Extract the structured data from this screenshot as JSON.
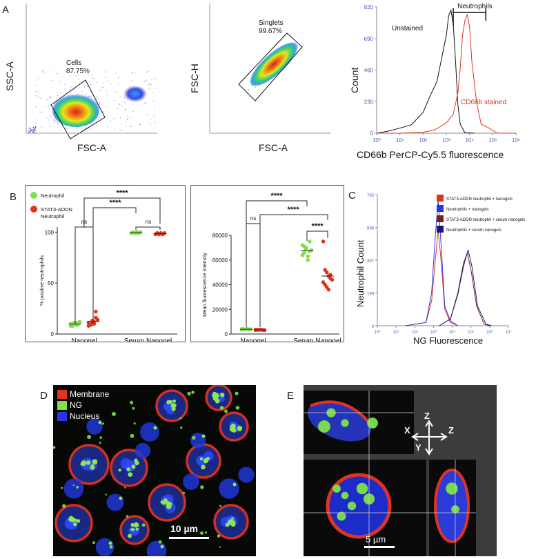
{
  "panels": {
    "A": "A",
    "B": "B",
    "C": "C",
    "D": "D",
    "E": "E"
  },
  "flow": {
    "p1": {
      "ylabel": "SSC-A",
      "xlabel": "FSC-A",
      "gate_name": "Cells",
      "gate_pct": "87.75%"
    },
    "p2": {
      "ylabel": "FSC-H",
      "xlabel": "FSC-A",
      "gate_name": "Singlets",
      "gate_pct": "99.67%"
    }
  },
  "colors": {
    "green": "#7ee04a",
    "red": "#e2331f",
    "blue": "#2a33e8",
    "darkred": "#7a1e1e",
    "navy": "#151a7a",
    "blueaxis": "#4a5cb0"
  },
  "chart_data": [
    {
      "id": "histogram_cd66b",
      "type": "line",
      "title": "",
      "xlabel": "CD66b PerCP-Cy5.5 fluorescence",
      "ylabel": "Count",
      "x_scale": "log",
      "x_ticks": [
        "10⁰",
        "10¹",
        "10²",
        "10³",
        "10⁴",
        "10⁵",
        "10⁶"
      ],
      "y_ticks": [
        "0",
        "230",
        "460",
        "690",
        "920"
      ],
      "ylim": [
        0,
        920
      ],
      "xlim_log10": [
        0,
        6
      ],
      "series": [
        {
          "name": "Unstained",
          "points": [
            [
              0.0,
              0
            ],
            [
              0.5,
              8
            ],
            [
              1.0,
              20
            ],
            [
              1.5,
              60
            ],
            [
              2.0,
              150
            ],
            [
              2.3,
              250
            ],
            [
              2.6,
              400
            ],
            [
              2.8,
              560
            ],
            [
              3.0,
              720
            ],
            [
              3.1,
              840
            ],
            [
              3.2,
              900
            ],
            [
              3.3,
              780
            ],
            [
              3.4,
              520
            ],
            [
              3.5,
              200
            ],
            [
              3.6,
              60
            ],
            [
              3.8,
              10
            ],
            [
              4.2,
              0
            ]
          ]
        },
        {
          "name": "CD66b stained",
          "points": [
            [
              0.0,
              0
            ],
            [
              1.0,
              10
            ],
            [
              2.0,
              20
            ],
            [
              2.5,
              30
            ],
            [
              3.0,
              60
            ],
            [
              3.3,
              120
            ],
            [
              3.5,
              300
            ],
            [
              3.6,
              480
            ],
            [
              3.7,
              700
            ],
            [
              3.8,
              830
            ],
            [
              3.9,
              850
            ],
            [
              4.0,
              760
            ],
            [
              4.1,
              520
            ],
            [
              4.3,
              230
            ],
            [
              4.5,
              80
            ],
            [
              4.8,
              20
            ],
            [
              5.2,
              5
            ],
            [
              6.0,
              0
            ]
          ]
        }
      ],
      "annotations": {
        "gate_label": "Neutrophils",
        "unstained_label": "Unstained",
        "stained_label": "CD66b stained",
        "gate_log10": [
          3.3,
          4.7
        ]
      }
    },
    {
      "id": "pct_positive",
      "type": "scatter",
      "ylabel": "% positive neutrophils",
      "categories": [
        "Nanogel",
        "Serum Nanogel"
      ],
      "ylim": [
        0,
        105
      ],
      "y_ticks": [
        "0",
        "50",
        "100"
      ],
      "legend": [
        "Neutrophil",
        "STAT3-ADDN Neutrophil"
      ],
      "series": [
        {
          "name": "Neutrophil",
          "category": "Nanogel",
          "values": [
            8,
            9,
            10,
            11,
            9,
            12,
            10,
            8,
            11,
            9,
            10
          ]
        },
        {
          "name": "STAT3-ADDN Neutrophil",
          "category": "Nanogel",
          "values": [
            8,
            9,
            10,
            12,
            22,
            14,
            11,
            9,
            13,
            10,
            16
          ]
        },
        {
          "name": "Neutrophil",
          "category": "Serum Nanogel",
          "values": [
            99,
            100,
            99,
            100,
            99,
            100,
            99,
            100,
            99,
            100,
            99
          ]
        },
        {
          "name": "STAT3-ADDN Neutrophil",
          "category": "Serum Nanogel",
          "values": [
            98,
            99,
            98,
            99,
            98,
            99,
            98,
            99,
            98,
            99,
            98
          ]
        }
      ],
      "significance": [
        {
          "label": "ns",
          "pair": "Nanogel"
        },
        {
          "label": "ns",
          "pair": "Serum Nanogel"
        },
        {
          "label": "****"
        },
        {
          "label": "****"
        }
      ]
    },
    {
      "id": "mfi",
      "type": "scatter",
      "ylabel": "Mean fluorescence intensity",
      "categories": [
        "Nanogel",
        "Serum Nanogel"
      ],
      "ylim": [
        0,
        80000
      ],
      "y_ticks": [
        "0",
        "20000",
        "40000",
        "60000",
        "80000"
      ],
      "series": [
        {
          "name": "Neutrophil",
          "category": "Nanogel",
          "values": [
            3500,
            4000,
            3800,
            4200,
            3600,
            3900,
            4100,
            3700
          ]
        },
        {
          "name": "STAT3-ADDN Neutrophil",
          "category": "Nanogel",
          "values": [
            3200,
            3500,
            3400,
            3600,
            3300,
            3100,
            3500,
            3400
          ]
        },
        {
          "name": "Neutrophil",
          "category": "Serum Nanogel",
          "values": [
            72000,
            66000,
            70000,
            63000,
            75000,
            68000,
            64000,
            71000,
            69000,
            60000,
            67000
          ]
        },
        {
          "name": "STAT3-ADDN Neutrophil",
          "category": "Serum Nanogel",
          "values": [
            75000,
            52000,
            50000,
            47000,
            45000,
            44000,
            42000,
            40000,
            38000,
            36000,
            48000
          ]
        }
      ],
      "significance": [
        {
          "label": "ns"
        },
        {
          "label": "****"
        },
        {
          "label": "****"
        },
        {
          "label": "****"
        }
      ]
    },
    {
      "id": "ng_histogram",
      "type": "line",
      "xlabel": "NG Fluorescence",
      "ylabel": "Neutrophil Count",
      "x_scale": "log",
      "x_ticks": [
        "10⁰",
        "10¹",
        "10²",
        "10³",
        "10⁴",
        "10⁵",
        "10⁶",
        "10⁷"
      ],
      "y_ticks": [
        "0",
        "199",
        "397",
        "596",
        "795"
      ],
      "ylim": [
        0,
        795
      ],
      "xlim_log10": [
        0,
        7
      ],
      "legend": [
        "STAT3-ADDN neutrophil + nanogels",
        "Neutrophils + nanogels",
        "STAT3-ADDN neutrophil + serum nanogels",
        "Neutrophils + serum nanogels"
      ],
      "series": [
        {
          "name": "STAT3-ADDN neutrophil + nanogels",
          "points": [
            [
              1.5,
              0
            ],
            [
              2.6,
              20
            ],
            [
              2.9,
              150
            ],
            [
              3.1,
              400
            ],
            [
              3.25,
              580
            ],
            [
              3.4,
              400
            ],
            [
              3.6,
              100
            ],
            [
              3.9,
              20
            ],
            [
              4.3,
              0
            ]
          ]
        },
        {
          "name": "Neutrophils + nanogels",
          "points": [
            [
              1.5,
              0
            ],
            [
              2.6,
              20
            ],
            [
              2.9,
              200
            ],
            [
              3.1,
              550
            ],
            [
              3.25,
              760
            ],
            [
              3.4,
              500
            ],
            [
              3.6,
              120
            ],
            [
              3.9,
              30
            ],
            [
              4.3,
              0
            ]
          ]
        },
        {
          "name": "STAT3-ADDN neutrophil + serum nanogels",
          "points": [
            [
              3.3,
              0
            ],
            [
              3.9,
              40
            ],
            [
              4.3,
              200
            ],
            [
              4.6,
              380
            ],
            [
              4.8,
              440
            ],
            [
              5.0,
              340
            ],
            [
              5.3,
              120
            ],
            [
              5.7,
              10
            ],
            [
              6.0,
              0
            ]
          ]
        },
        {
          "name": "Neutrophils + serum nanogels",
          "points": [
            [
              3.3,
              0
            ],
            [
              3.9,
              40
            ],
            [
              4.3,
              190
            ],
            [
              4.6,
              360
            ],
            [
              4.85,
              460
            ],
            [
              5.05,
              360
            ],
            [
              5.35,
              120
            ],
            [
              5.8,
              10
            ],
            [
              6.1,
              0
            ]
          ]
        }
      ]
    }
  ],
  "micro_d": {
    "legend": [
      "Membrane",
      "NG",
      "Nucleus"
    ],
    "scale": "10 µm"
  },
  "micro_e": {
    "axes": [
      "Z",
      "X",
      "Z",
      "Y"
    ],
    "scale": "5 µm"
  }
}
